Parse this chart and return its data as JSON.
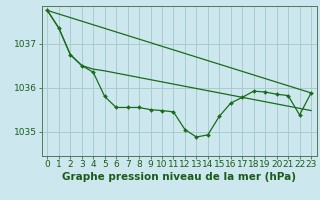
{
  "bg_color": "#cce8ee",
  "grid_color": "#aacccc",
  "line_color": "#1a6b1a",
  "marker_color": "#1a6b1a",
  "title": "Graphe pression niveau de la mer (hPa)",
  "xlim": [
    -0.5,
    23.5
  ],
  "ylim": [
    1034.45,
    1037.85
  ],
  "yticks": [
    1035,
    1036,
    1037
  ],
  "xticks": [
    0,
    1,
    2,
    3,
    4,
    5,
    6,
    7,
    8,
    9,
    10,
    11,
    12,
    13,
    14,
    15,
    16,
    17,
    18,
    19,
    20,
    21,
    22,
    23
  ],
  "series_wavy_x": [
    0,
    1,
    2,
    3,
    4,
    5,
    6,
    7,
    8,
    9,
    10,
    11,
    12,
    13,
    14,
    15,
    16,
    17,
    18,
    19,
    20,
    21,
    22,
    23
  ],
  "series_wavy_y": [
    1037.75,
    1037.35,
    1036.75,
    1036.5,
    1036.35,
    1035.8,
    1035.55,
    1035.55,
    1035.55,
    1035.5,
    1035.48,
    1035.45,
    1035.05,
    1034.88,
    1034.93,
    1035.35,
    1035.65,
    1035.78,
    1035.92,
    1035.9,
    1035.85,
    1035.82,
    1035.38,
    1035.88
  ],
  "series_trend1_x": [
    0,
    1,
    2,
    3,
    4,
    5,
    6,
    7,
    8,
    9,
    10,
    11,
    12,
    13,
    14,
    15,
    16,
    17,
    18,
    19,
    20,
    21,
    22,
    23
  ],
  "series_trend1_y": [
    1037.75,
    1037.35,
    1036.75,
    1036.5,
    1036.42,
    1036.38,
    1036.33,
    1036.28,
    1036.23,
    1036.18,
    1036.13,
    1036.08,
    1036.03,
    1035.98,
    1035.93,
    1035.88,
    1035.83,
    1035.78,
    1035.73,
    1035.68,
    1035.63,
    1035.58,
    1035.53,
    1035.48
  ],
  "series_trend2_x": [
    0,
    23
  ],
  "series_trend2_y": [
    1037.75,
    1035.88
  ],
  "title_color": "#1a5c1a",
  "title_fontsize": 7.5,
  "tick_fontsize": 6.5
}
